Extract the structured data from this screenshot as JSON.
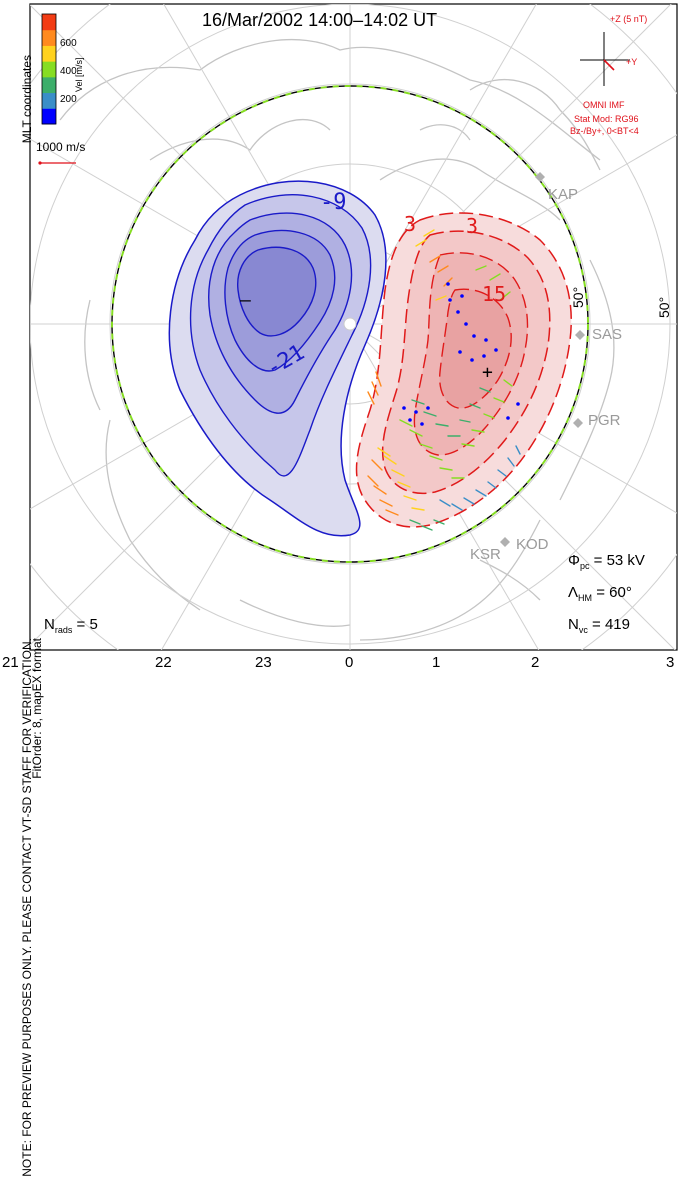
{
  "title": "16/Mar/2002 14:00–14:02 UT",
  "coordinates_label": "MLT coordinates",
  "preview_note": "NOTE: FOR PREVIEW PURPOSES ONLY. PLEASE CONTACT VT-SD STAFF FOR VERIFICATION.",
  "fit_order_note": "FitOrder: 8, mapEX format",
  "velocity_scale": {
    "label": "Vel [m/s]",
    "ticks": [
      "600",
      "400",
      "200"
    ],
    "colors": [
      "#0000ff",
      "#3a8ec8",
      "#3cae6a",
      "#86dd22",
      "#ffd21e",
      "#ff8a1e",
      "#f23c14"
    ]
  },
  "reference_vector_label": "1000 m/s",
  "imf": {
    "bz_label": "+Z (5 nT)",
    "by_label": "+Y",
    "source_label": "OMNI IMF",
    "model_label": "Stat Mod: RG96",
    "condition_label": "Bz-/By+, 0<BT<4"
  },
  "contours": {
    "negative_labels": [
      "-9",
      "-21"
    ],
    "positive_labels": [
      "3",
      "3",
      "15"
    ],
    "min_marker": "–",
    "max_marker": "+"
  },
  "latitude_labels": [
    "50°",
    "50°"
  ],
  "radar_labels": [
    "KAP",
    "SAS",
    "PGR",
    "KOD",
    "KSR"
  ],
  "mlt_ticks": [
    "21",
    "22",
    "23",
    "0",
    "1",
    "2",
    "3"
  ],
  "stats": {
    "phi_pc": {
      "symbol": "Φ",
      "sub": "pc",
      "value": "= 53 kV"
    },
    "lambda_hm": {
      "symbol": "Λ",
      "sub": "HM",
      "value": "= 60°"
    },
    "n_vc": {
      "symbol": "N",
      "sub": "vc",
      "value": "= 419"
    },
    "n_rads": {
      "symbol": "N",
      "sub": "rads",
      "value": "= 5"
    }
  },
  "colors": {
    "negative_cell": "#1a1ac8",
    "positive_cell": "#e01a1a",
    "boundary": "#86dd22",
    "annotation_red": "#e0101a"
  }
}
